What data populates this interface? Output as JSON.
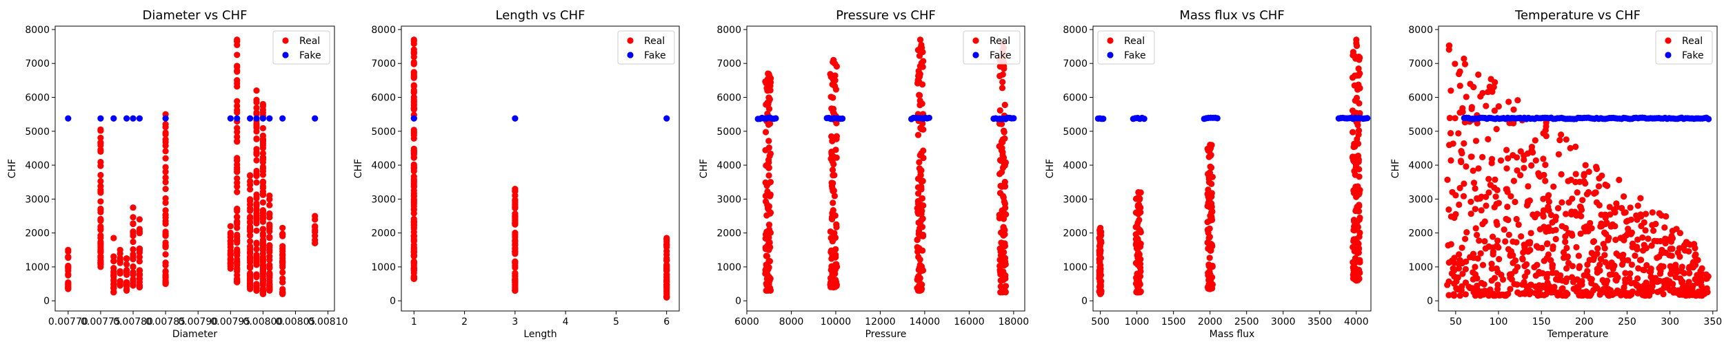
{
  "colors": {
    "Real": "#ff0000",
    "Fake": "#0000ff"
  },
  "chart_data": [
    {
      "type": "scatter",
      "title": "Diameter vs CHF",
      "xlabel": "Diameter",
      "ylabel": "CHF",
      "xlim": [
        0.00768,
        0.00811
      ],
      "ylim": [
        -300,
        8100
      ],
      "xticks": [
        0.0077,
        0.00775,
        0.0078,
        0.00785,
        0.0079,
        0.00795,
        0.008,
        0.00805,
        0.0081
      ],
      "xtick_labels": [
        "0.00770",
        "0.00775",
        "0.00780",
        "0.00785",
        "0.00790",
        "0.00795",
        "0.00800",
        "0.00805",
        "0.00810"
      ],
      "yticks": [
        0,
        1000,
        2000,
        3000,
        4000,
        5000,
        6000,
        7000,
        8000
      ],
      "legend": [
        "Real",
        "Fake"
      ],
      "legend_loc": "upper right",
      "series": [
        {
          "name": "Real",
          "columns": [
            {
              "x": 0.0077,
              "min": 350,
              "max": 1500,
              "n": 22
            },
            {
              "x": 0.00775,
              "min": 1000,
              "max": 5050,
              "n": 50
            },
            {
              "x": 0.00777,
              "min": 250,
              "max": 1850,
              "n": 20
            },
            {
              "x": 0.00778,
              "min": 450,
              "max": 1500,
              "n": 15
            },
            {
              "x": 0.00779,
              "min": 300,
              "max": 1250,
              "n": 15
            },
            {
              "x": 0.0078,
              "min": 450,
              "max": 2750,
              "n": 25
            },
            {
              "x": 0.00781,
              "min": 400,
              "max": 2400,
              "n": 22
            },
            {
              "x": 0.00785,
              "min": 500,
              "max": 5500,
              "n": 50
            },
            {
              "x": 0.00795,
              "min": 950,
              "max": 2200,
              "n": 20
            },
            {
              "x": 0.00796,
              "min": 550,
              "max": 7700,
              "n": 75
            },
            {
              "x": 0.00798,
              "min": 350,
              "max": 3700,
              "n": 55
            },
            {
              "x": 0.00799,
              "min": 300,
              "max": 6200,
              "n": 80
            },
            {
              "x": 0.008,
              "min": 200,
              "max": 5800,
              "n": 90
            },
            {
              "x": 0.00801,
              "min": 300,
              "max": 3100,
              "n": 40
            },
            {
              "x": 0.00803,
              "min": 200,
              "max": 2150,
              "n": 30
            },
            {
              "x": 0.00808,
              "min": 1700,
              "max": 2500,
              "n": 8
            }
          ]
        },
        {
          "name": "Fake",
          "points": [
            [
              0.0077,
              5380
            ],
            [
              0.00775,
              5380
            ],
            [
              0.00777,
              5380
            ],
            [
              0.00779,
              5380
            ],
            [
              0.0078,
              5380
            ],
            [
              0.00781,
              5380
            ],
            [
              0.00785,
              5380
            ],
            [
              0.00795,
              5380
            ],
            [
              0.00796,
              5380
            ],
            [
              0.00798,
              5380
            ],
            [
              0.00799,
              5380
            ],
            [
              0.008,
              5380
            ],
            [
              0.00801,
              5380
            ],
            [
              0.00803,
              5380
            ],
            [
              0.00808,
              5380
            ]
          ]
        }
      ]
    },
    {
      "type": "scatter",
      "title": "Length vs CHF",
      "xlabel": "Length",
      "ylabel": "CHF",
      "xlim": [
        0.75,
        6.25
      ],
      "ylim": [
        -300,
        8100
      ],
      "xticks": [
        1,
        2,
        3,
        4,
        5,
        6
      ],
      "xtick_labels": [
        "1",
        "2",
        "3",
        "4",
        "5",
        "6"
      ],
      "yticks": [
        0,
        1000,
        2000,
        3000,
        4000,
        5000,
        6000,
        7000,
        8000
      ],
      "legend": [
        "Real",
        "Fake"
      ],
      "legend_loc": "upper right",
      "series": [
        {
          "name": "Real",
          "columns": [
            {
              "x": 1,
              "min": 650,
              "max": 7700,
              "n": 130
            },
            {
              "x": 3,
              "min": 300,
              "max": 3300,
              "n": 70
            },
            {
              "x": 6,
              "min": 100,
              "max": 1850,
              "n": 45
            }
          ]
        },
        {
          "name": "Fake",
          "points": [
            [
              1,
              5380
            ],
            [
              3,
              5380
            ],
            [
              6,
              5380
            ]
          ]
        }
      ]
    },
    {
      "type": "scatter",
      "title": "Pressure vs CHF",
      "xlabel": "Pressure",
      "ylabel": "CHF",
      "xlim": [
        6000,
        18500
      ],
      "ylim": [
        -300,
        8100
      ],
      "xticks": [
        6000,
        8000,
        10000,
        12000,
        14000,
        16000,
        18000
      ],
      "xtick_labels": [
        "6000",
        "8000",
        "10000",
        "12000",
        "14000",
        "16000",
        "18000"
      ],
      "yticks": [
        0,
        1000,
        2000,
        3000,
        4000,
        5000,
        6000,
        7000,
        8000
      ],
      "legend": [
        "Real",
        "Fake"
      ],
      "legend_loc": "upper right",
      "series": [
        {
          "name": "Real",
          "columns": [
            {
              "x": 6950,
              "min": 300,
              "max": 6700,
              "n": 110,
              "spread": 250
            },
            {
              "x": 9900,
              "min": 400,
              "max": 7100,
              "n": 110,
              "spread": 300
            },
            {
              "x": 13800,
              "min": 300,
              "max": 7700,
              "n": 110,
              "spread": 280
            },
            {
              "x": 17500,
              "min": 250,
              "max": 7600,
              "n": 120,
              "spread": 300
            }
          ]
        },
        {
          "name": "Fake",
          "bands": [
            {
              "xmin": 6500,
              "xmax": 7300,
              "y": 5380
            },
            {
              "xmin": 9600,
              "xmax": 10300,
              "y": 5380
            },
            {
              "xmin": 13400,
              "xmax": 14200,
              "y": 5380
            },
            {
              "xmin": 17100,
              "xmax": 18000,
              "y": 5380
            }
          ]
        }
      ]
    },
    {
      "type": "scatter",
      "title": "Mass flux vs CHF",
      "xlabel": "Mass flux",
      "ylabel": "CHF",
      "xlim": [
        400,
        4200
      ],
      "ylim": [
        -300,
        8100
      ],
      "xticks": [
        500,
        1000,
        1500,
        2000,
        2500,
        3000,
        3500,
        4000
      ],
      "xtick_labels": [
        "500",
        "1000",
        "1500",
        "2000",
        "2500",
        "3000",
        "3500",
        "4000"
      ],
      "yticks": [
        0,
        1000,
        2000,
        3000,
        4000,
        5000,
        6000,
        7000,
        8000
      ],
      "legend": [
        "Real",
        "Fake"
      ],
      "legend_loc": "upper left",
      "series": [
        {
          "name": "Real",
          "columns": [
            {
              "x": 500,
              "min": 200,
              "max": 2150,
              "n": 60,
              "spread": 30
            },
            {
              "x": 1020,
              "min": 250,
              "max": 3200,
              "n": 90,
              "spread": 70
            },
            {
              "x": 2000,
              "min": 350,
              "max": 4600,
              "n": 90,
              "spread": 70
            },
            {
              "x": 4000,
              "min": 600,
              "max": 7700,
              "n": 140,
              "spread": 100
            }
          ]
        },
        {
          "name": "Fake",
          "bands": [
            {
              "xmin": 470,
              "xmax": 540,
              "y": 5380
            },
            {
              "xmin": 950,
              "xmax": 1100,
              "y": 5380
            },
            {
              "xmin": 1920,
              "xmax": 2100,
              "y": 5380
            },
            {
              "xmin": 3760,
              "xmax": 4150,
              "y": 5380
            }
          ]
        }
      ]
    },
    {
      "type": "scatter",
      "title": "Temperature vs CHF",
      "xlabel": "Temperature",
      "ylabel": "CHF",
      "xlim": [
        30,
        355
      ],
      "ylim": [
        -300,
        8100
      ],
      "xticks": [
        50,
        100,
        150,
        200,
        250,
        300,
        350
      ],
      "xtick_labels": [
        "50",
        "100",
        "150",
        "200",
        "250",
        "300",
        "350"
      ],
      "yticks": [
        0,
        1000,
        2000,
        3000,
        4000,
        5000,
        6000,
        7000,
        8000
      ],
      "legend": [
        "Real",
        "Fake"
      ],
      "legend_loc": "upper right",
      "series": [
        {
          "name": "Real",
          "cloud": {
            "xmin": 40,
            "xmax": 345,
            "n": 850,
            "seed": 7
          }
        },
        {
          "name": "Fake",
          "bands": [
            {
              "xmin": 60,
              "xmax": 345,
              "y": 5380
            }
          ]
        }
      ]
    }
  ]
}
